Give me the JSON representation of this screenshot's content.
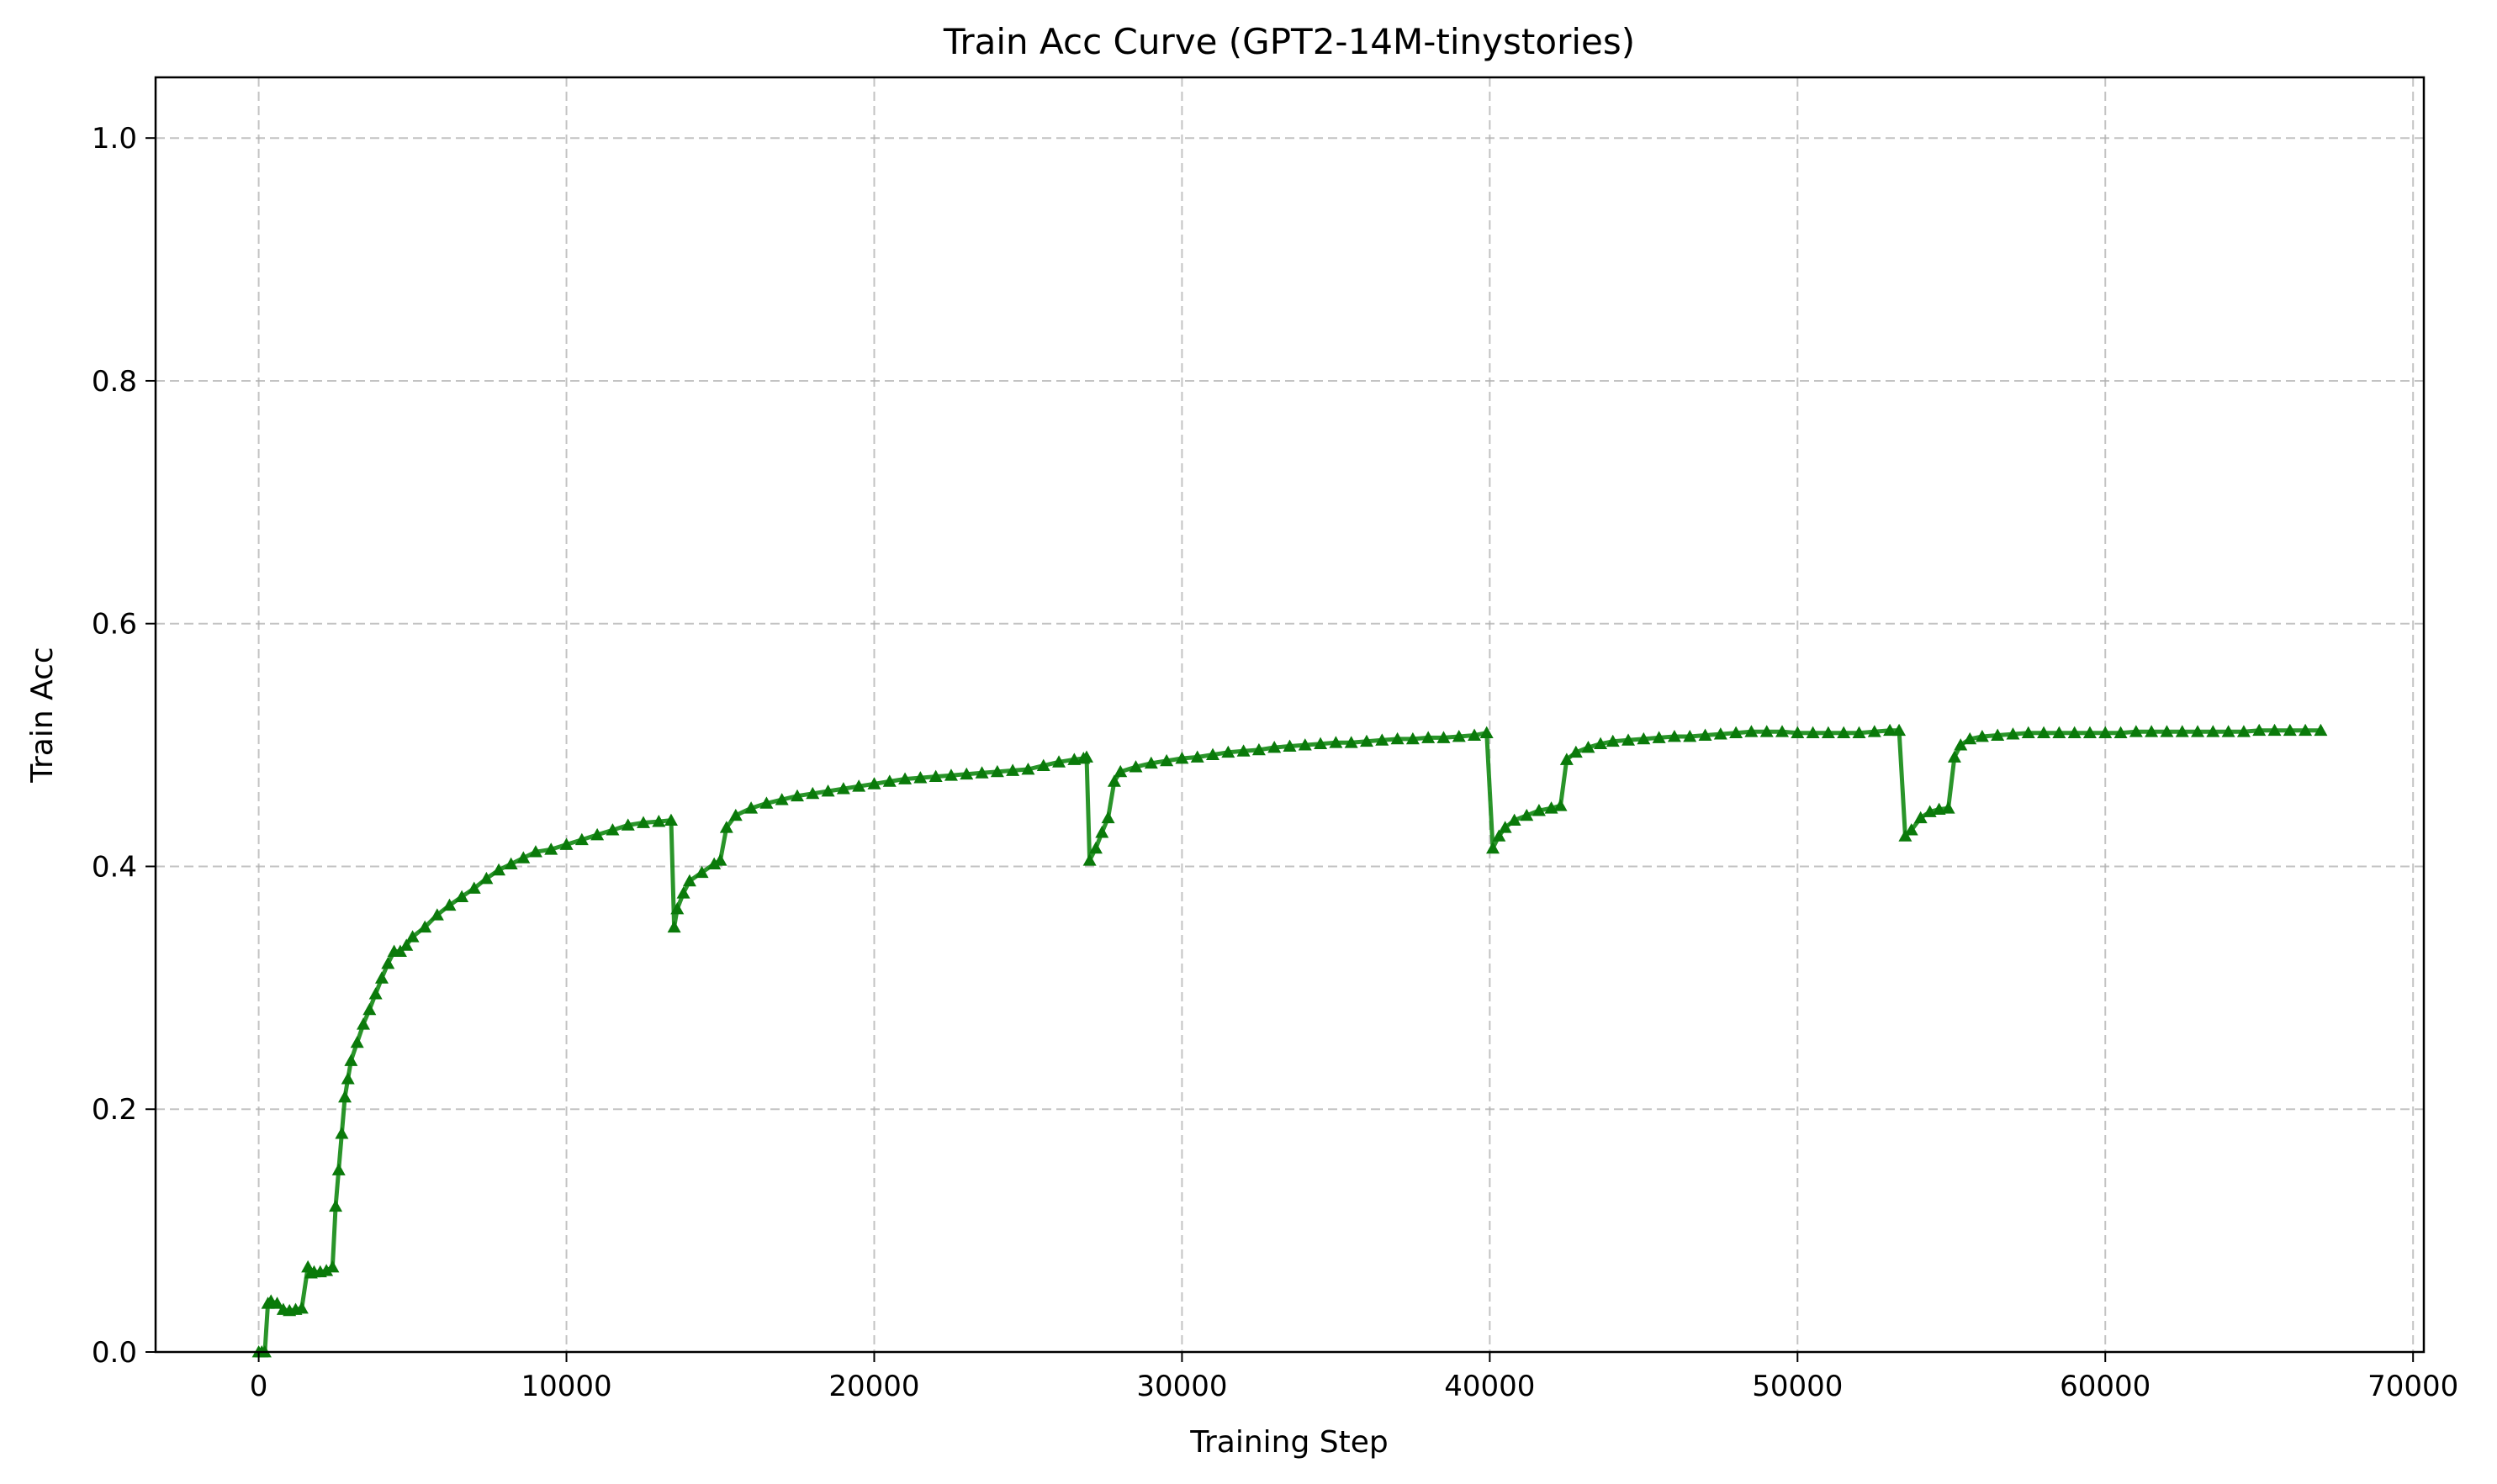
{
  "chart_data": {
    "type": "line",
    "title": "Train Acc Curve (GPT2-14M-tinystories)",
    "xlabel": "Training Step",
    "ylabel": "Train Acc",
    "xlim": [
      -3350,
      70350
    ],
    "ylim": [
      0.0,
      1.05
    ],
    "xticks": [
      0,
      10000,
      20000,
      30000,
      40000,
      50000,
      60000,
      70000
    ],
    "xtick_labels": [
      "0",
      "10000",
      "20000",
      "30000",
      "40000",
      "50000",
      "60000",
      "70000"
    ],
    "yticks": [
      0.0,
      0.2,
      0.4,
      0.6,
      0.8,
      1.0
    ],
    "ytick_labels": [
      "0.0",
      "0.2",
      "0.4",
      "0.6",
      "0.8",
      "1.0"
    ],
    "grid": true,
    "legend": "none",
    "series": [
      {
        "color": "#138a13",
        "marker": "triangle-up",
        "x": [
          0,
          100,
          200,
          300,
          400,
          600,
          800,
          1000,
          1200,
          1400,
          1600,
          1700,
          1800,
          2000,
          2200,
          2400,
          2500,
          2600,
          2700,
          2800,
          2900,
          3000,
          3200,
          3400,
          3600,
          3800,
          4000,
          4200,
          4400,
          4600,
          4800,
          5000,
          5400,
          5800,
          6200,
          6600,
          7000,
          7400,
          7800,
          8200,
          8600,
          9000,
          9500,
          10000,
          10500,
          11000,
          11500,
          12000,
          12500,
          13000,
          13400,
          13500,
          13600,
          13800,
          14000,
          14400,
          14800,
          15000,
          15200,
          15500,
          16000,
          16500,
          17000,
          17500,
          18000,
          18500,
          19000,
          19500,
          20000,
          20500,
          21000,
          21500,
          22000,
          22500,
          23000,
          23500,
          24000,
          24500,
          25000,
          25500,
          26000,
          26500,
          26800,
          26900,
          27000,
          27200,
          27400,
          27600,
          27800,
          28000,
          28500,
          29000,
          29500,
          30000,
          30500,
          31000,
          31500,
          32000,
          32500,
          33000,
          33500,
          34000,
          34500,
          35000,
          35500,
          36000,
          36500,
          37000,
          37500,
          38000,
          38500,
          39000,
          39500,
          39900,
          40100,
          40300,
          40500,
          40800,
          41200,
          41600,
          42000,
          42300,
          42500,
          42800,
          43200,
          43600,
          44000,
          44500,
          45000,
          45500,
          46000,
          46500,
          47000,
          47500,
          48000,
          48500,
          49000,
          49500,
          50000,
          50500,
          51000,
          51500,
          52000,
          52500,
          53000,
          53300,
          53500,
          53700,
          54000,
          54300,
          54600,
          54900,
          55100,
          55300,
          55600,
          56000,
          56500,
          57000,
          57500,
          58000,
          58500,
          59000,
          59500,
          60000,
          60500,
          61000,
          61500,
          62000,
          62500,
          63000,
          63500,
          64000,
          64500,
          65000,
          65500,
          66000,
          66500,
          67000
        ],
        "y": [
          0.0,
          0.0,
          0.0,
          0.04,
          0.042,
          0.04,
          0.035,
          0.034,
          0.035,
          0.036,
          0.07,
          0.065,
          0.066,
          0.066,
          0.067,
          0.07,
          0.12,
          0.15,
          0.18,
          0.21,
          0.225,
          0.24,
          0.255,
          0.27,
          0.282,
          0.295,
          0.308,
          0.32,
          0.33,
          0.33,
          0.335,
          0.342,
          0.35,
          0.36,
          0.368,
          0.375,
          0.382,
          0.39,
          0.397,
          0.402,
          0.407,
          0.412,
          0.414,
          0.418,
          0.422,
          0.426,
          0.43,
          0.434,
          0.436,
          0.437,
          0.438,
          0.35,
          0.365,
          0.378,
          0.388,
          0.395,
          0.402,
          0.405,
          0.432,
          0.442,
          0.448,
          0.452,
          0.455,
          0.458,
          0.46,
          0.462,
          0.464,
          0.466,
          0.468,
          0.47,
          0.472,
          0.473,
          0.474,
          0.475,
          0.476,
          0.477,
          0.478,
          0.479,
          0.48,
          0.483,
          0.486,
          0.488,
          0.489,
          0.49,
          0.405,
          0.415,
          0.428,
          0.44,
          0.47,
          0.478,
          0.482,
          0.485,
          0.487,
          0.489,
          0.49,
          0.492,
          0.494,
          0.495,
          0.496,
          0.498,
          0.499,
          0.5,
          0.501,
          0.502,
          0.502,
          0.503,
          0.504,
          0.505,
          0.505,
          0.506,
          0.506,
          0.507,
          0.508,
          0.51,
          0.415,
          0.425,
          0.432,
          0.438,
          0.442,
          0.446,
          0.448,
          0.45,
          0.488,
          0.494,
          0.498,
          0.501,
          0.503,
          0.504,
          0.505,
          0.506,
          0.507,
          0.507,
          0.508,
          0.509,
          0.51,
          0.511,
          0.511,
          0.511,
          0.51,
          0.51,
          0.51,
          0.51,
          0.51,
          0.511,
          0.512,
          0.512,
          0.425,
          0.43,
          0.44,
          0.445,
          0.447,
          0.448,
          0.49,
          0.5,
          0.505,
          0.507,
          0.508,
          0.509,
          0.51,
          0.51,
          0.51,
          0.51,
          0.51,
          0.51,
          0.51,
          0.511,
          0.511,
          0.511,
          0.511,
          0.511,
          0.511,
          0.511,
          0.511,
          0.512,
          0.512,
          0.512,
          0.512,
          0.512
        ]
      }
    ]
  }
}
